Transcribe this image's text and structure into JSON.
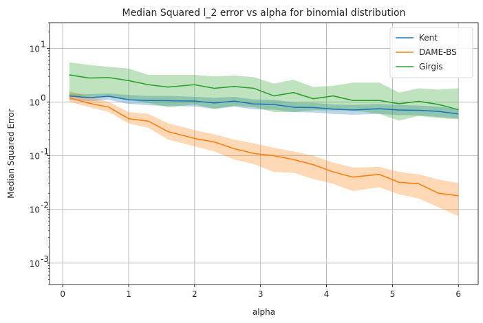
{
  "chart_data": {
    "type": "line",
    "title": "Median Squared l_2 error vs alpha for binomial distribution",
    "xlabel": "alpha",
    "ylabel": "Median Squared Error",
    "x_scale": "linear",
    "y_scale": "log",
    "xlim": [
      -0.2,
      6.3
    ],
    "ylim": [
      0.0004,
      30
    ],
    "x_ticks": [
      0,
      1,
      2,
      3,
      4,
      5,
      6
    ],
    "x_tick_labels": [
      "0",
      "1",
      "2",
      "3",
      "4",
      "5",
      "6"
    ],
    "y_ticks": [
      0.001,
      0.01,
      0.1,
      1,
      10
    ],
    "y_tick_labels": [
      "10",
      "10",
      "10",
      "10",
      "10"
    ],
    "y_tick_exponents": [
      "-3",
      "-2",
      "-1",
      "0",
      "1"
    ],
    "grid": true,
    "legend_position": "top-right",
    "x": [
      0.1,
      0.4,
      0.7,
      1.0,
      1.3,
      1.6,
      2.0,
      2.3,
      2.6,
      2.9,
      3.2,
      3.5,
      3.8,
      4.1,
      4.4,
      4.8,
      5.1,
      5.4,
      5.7,
      6.0
    ],
    "series": [
      {
        "name": "Kent",
        "color": "#1f77b4",
        "band_color": "#1f77b4",
        "values": [
          1.3,
          1.2,
          1.28,
          1.1,
          1.07,
          1.06,
          1.04,
          0.96,
          1.04,
          0.92,
          0.9,
          0.8,
          0.79,
          0.74,
          0.71,
          0.75,
          0.71,
          0.7,
          0.67,
          0.6
        ],
        "lower": [
          1.08,
          1.03,
          1.1,
          0.92,
          0.87,
          0.84,
          0.82,
          0.74,
          0.82,
          0.73,
          0.72,
          0.65,
          0.64,
          0.6,
          0.58,
          0.6,
          0.57,
          0.56,
          0.53,
          0.49
        ],
        "upper": [
          1.45,
          1.4,
          1.45,
          1.35,
          1.3,
          1.3,
          1.25,
          1.2,
          1.25,
          1.12,
          1.1,
          0.98,
          0.97,
          0.9,
          0.88,
          0.92,
          0.88,
          0.86,
          0.82,
          0.74
        ]
      },
      {
        "name": "DAME-BS",
        "color": "#ff7f0e",
        "band_color": "#ff7f0e",
        "values": [
          1.2,
          0.95,
          0.8,
          0.49,
          0.44,
          0.28,
          0.21,
          0.18,
          0.135,
          0.11,
          0.1,
          0.085,
          0.068,
          0.05,
          0.04,
          0.045,
          0.032,
          0.03,
          0.02,
          0.018
        ],
        "lower": [
          1.02,
          0.8,
          0.65,
          0.4,
          0.33,
          0.2,
          0.15,
          0.12,
          0.085,
          0.07,
          0.05,
          0.048,
          0.037,
          0.03,
          0.022,
          0.026,
          0.019,
          0.016,
          0.011,
          0.0075
        ],
        "upper": [
          1.6,
          1.25,
          1.0,
          0.65,
          0.6,
          0.4,
          0.3,
          0.25,
          0.2,
          0.17,
          0.14,
          0.12,
          0.1,
          0.075,
          0.06,
          0.062,
          0.05,
          0.045,
          0.036,
          0.031
        ]
      },
      {
        "name": "Girgis",
        "color": "#2ca02c",
        "band_color": "#2ca02c",
        "values": [
          3.2,
          2.8,
          2.85,
          2.5,
          2.1,
          1.9,
          2.1,
          1.8,
          1.95,
          1.8,
          1.3,
          1.5,
          1.15,
          1.3,
          1.07,
          1.07,
          0.93,
          1.03,
          0.9,
          0.72
        ],
        "lower": [
          1.3,
          1.2,
          1.3,
          1.1,
          0.95,
          0.8,
          0.9,
          0.75,
          0.85,
          0.8,
          0.65,
          0.65,
          0.7,
          0.7,
          0.7,
          0.6,
          0.45,
          0.55,
          0.5,
          0.48
        ],
        "upper": [
          5.5,
          4.9,
          4.5,
          4.2,
          3.2,
          3.2,
          3.2,
          3.0,
          3.1,
          2.9,
          2.2,
          2.6,
          1.9,
          2.0,
          2.3,
          2.3,
          1.5,
          1.8,
          1.7,
          1.8
        ]
      }
    ]
  }
}
